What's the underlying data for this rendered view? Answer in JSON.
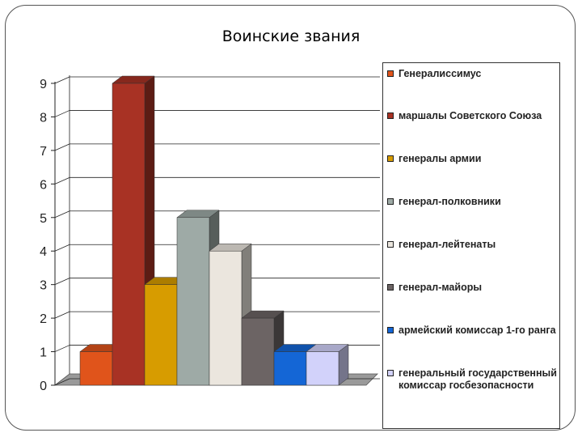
{
  "chart_data": {
    "type": "bar",
    "title": "Воинские звания",
    "xlabel": "",
    "ylabel": "",
    "ylim": [
      0,
      9
    ],
    "yticks": [
      "0",
      "1",
      "2",
      "3",
      "4",
      "5",
      "6",
      "7",
      "8",
      "9"
    ],
    "grid": true,
    "legend_position": "right",
    "series": [
      {
        "name": "Генералиссимус",
        "value": 1,
        "color": "#e0541b"
      },
      {
        "name": "маршалы Советского Союза",
        "value": 9,
        "color": "#a83224"
      },
      {
        "name": "генералы армии",
        "value": 3,
        "color": "#d79c00"
      },
      {
        "name": "генерал-полковники",
        "value": 5,
        "color": "#9eaaa6"
      },
      {
        "name": "генерал-лейтенаты",
        "value": 4,
        "color": "#ebe6de"
      },
      {
        "name": "генерал-майоры",
        "value": 2,
        "color": "#6c6464"
      },
      {
        "name": "армейский комиссар 1-го ранга",
        "value": 1,
        "color": "#1466d6"
      },
      {
        "name": "генеральный государственный комиссар госбезопасности",
        "value": 1,
        "color": "#d2d2fa"
      }
    ]
  }
}
